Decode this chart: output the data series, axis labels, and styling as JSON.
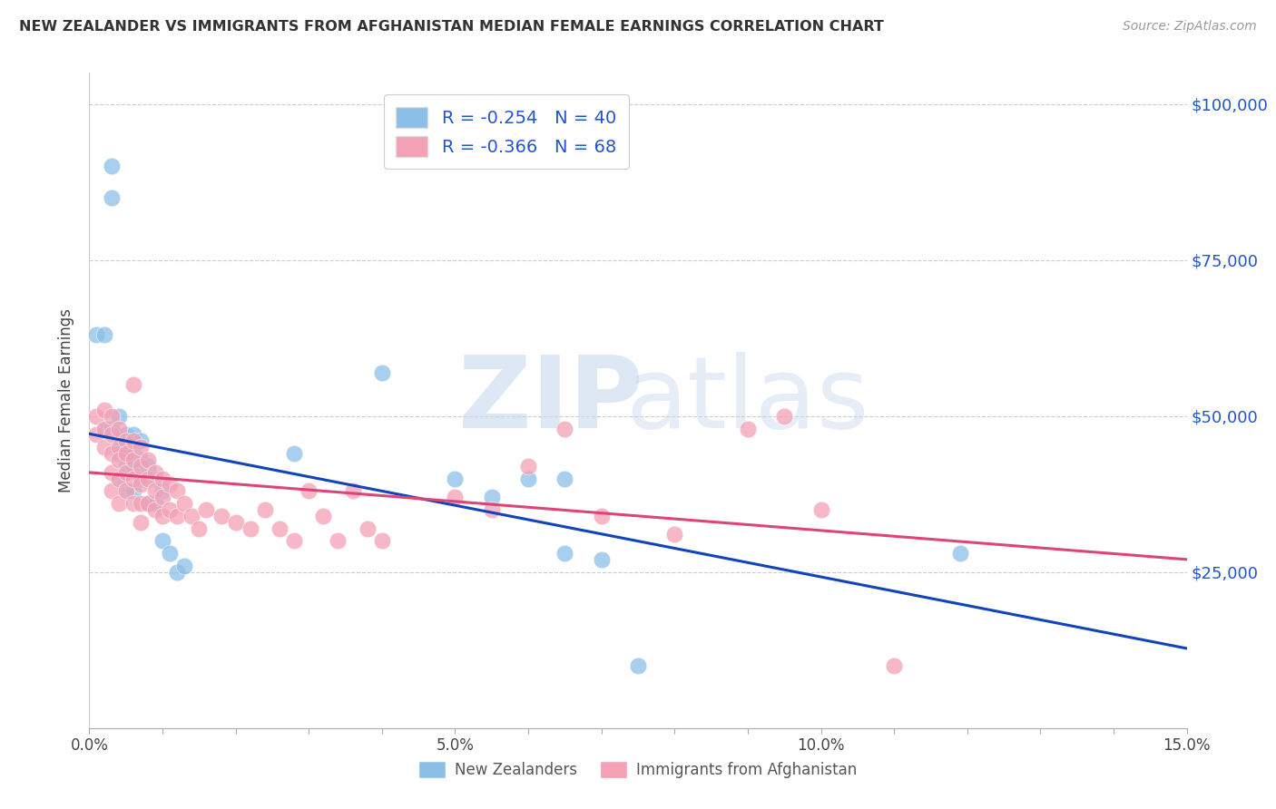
{
  "title": "NEW ZEALANDER VS IMMIGRANTS FROM AFGHANISTAN MEDIAN FEMALE EARNINGS CORRELATION CHART",
  "source": "Source: ZipAtlas.com",
  "ylabel": "Median Female Earnings",
  "xlim": [
    0,
    0.15
  ],
  "ylim": [
    0,
    105000
  ],
  "yticks": [
    0,
    25000,
    50000,
    75000,
    100000
  ],
  "ytick_labels_right": [
    "",
    "$25,000",
    "$50,000",
    "$75,000",
    "$100,000"
  ],
  "legend1_label": "R = -0.254   N = 40",
  "legend2_label": "R = -0.366   N = 68",
  "legend_bottom1": "New Zealanders",
  "legend_bottom2": "Immigrants from Afghanistan",
  "nz_color": "#8BBFE8",
  "afg_color": "#F4A0B5",
  "nz_line_color": "#1144BB",
  "afg_line_color": "#DD4477",
  "background_color": "#ffffff",
  "nz_x": [
    0.001,
    0.002,
    0.002,
    0.003,
    0.003,
    0.003,
    0.004,
    0.004,
    0.004,
    0.004,
    0.005,
    0.005,
    0.005,
    0.005,
    0.006,
    0.006,
    0.006,
    0.006,
    0.007,
    0.007,
    0.007,
    0.008,
    0.008,
    0.009,
    0.009,
    0.01,
    0.01,
    0.011,
    0.012,
    0.013,
    0.028,
    0.04,
    0.05,
    0.055,
    0.06,
    0.065,
    0.065,
    0.07,
    0.075,
    0.119
  ],
  "nz_y": [
    63000,
    63000,
    48000,
    85000,
    90000,
    48000,
    50000,
    46000,
    44000,
    40000,
    47000,
    44000,
    42000,
    38000,
    47000,
    44000,
    42000,
    38000,
    46000,
    43000,
    40000,
    42000,
    36000,
    40000,
    36000,
    38000,
    30000,
    28000,
    25000,
    26000,
    44000,
    57000,
    40000,
    37000,
    40000,
    28000,
    40000,
    27000,
    10000,
    28000
  ],
  "afg_x": [
    0.001,
    0.001,
    0.002,
    0.002,
    0.002,
    0.003,
    0.003,
    0.003,
    0.003,
    0.003,
    0.004,
    0.004,
    0.004,
    0.004,
    0.004,
    0.005,
    0.005,
    0.005,
    0.005,
    0.006,
    0.006,
    0.006,
    0.006,
    0.006,
    0.007,
    0.007,
    0.007,
    0.007,
    0.007,
    0.008,
    0.008,
    0.008,
    0.009,
    0.009,
    0.009,
    0.01,
    0.01,
    0.01,
    0.011,
    0.011,
    0.012,
    0.012,
    0.013,
    0.014,
    0.015,
    0.016,
    0.018,
    0.02,
    0.022,
    0.024,
    0.026,
    0.028,
    0.03,
    0.032,
    0.034,
    0.036,
    0.038,
    0.04,
    0.05,
    0.055,
    0.06,
    0.065,
    0.07,
    0.08,
    0.09,
    0.095,
    0.1,
    0.11
  ],
  "afg_y": [
    50000,
    47000,
    51000,
    48000,
    45000,
    50000,
    47000,
    44000,
    41000,
    38000,
    48000,
    45000,
    43000,
    40000,
    36000,
    46000,
    44000,
    41000,
    38000,
    55000,
    46000,
    43000,
    40000,
    36000,
    45000,
    42000,
    39000,
    36000,
    33000,
    43000,
    40000,
    36000,
    41000,
    38000,
    35000,
    40000,
    37000,
    34000,
    39000,
    35000,
    38000,
    34000,
    36000,
    34000,
    32000,
    35000,
    34000,
    33000,
    32000,
    35000,
    32000,
    30000,
    38000,
    34000,
    30000,
    38000,
    32000,
    30000,
    37000,
    35000,
    42000,
    48000,
    34000,
    31000,
    48000,
    50000,
    35000,
    10000
  ]
}
